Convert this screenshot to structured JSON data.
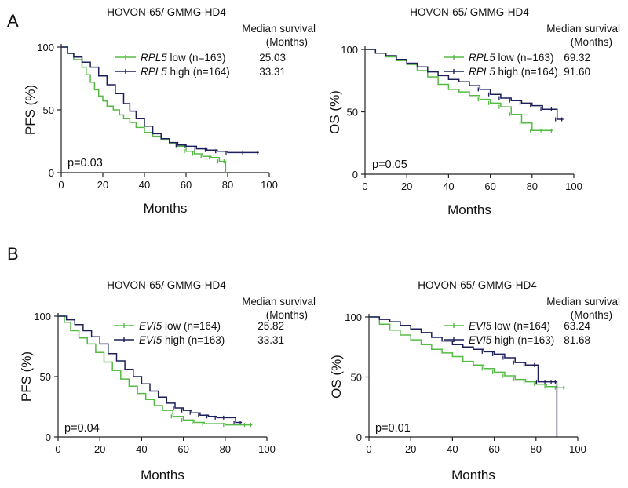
{
  "panels": [
    {
      "letter": "A"
    },
    {
      "letter": "B"
    }
  ],
  "colors": {
    "low": "#55bb44",
    "high": "#1c1f5a",
    "axis": "#222222"
  },
  "chart_data": [
    {
      "type": "line",
      "panel": "A",
      "title": "HOVON-65/ GMMG-HD4",
      "xlabel": "Months",
      "ylabel": "PFS (%)",
      "xlim": [
        0,
        100
      ],
      "ylim": [
        0,
        100
      ],
      "xticks": [
        "0",
        "20",
        "40",
        "60",
        "80",
        "100"
      ],
      "yticks": [
        "0",
        "50",
        "100"
      ],
      "legend_header": [
        "Median survival",
        "(Months)"
      ],
      "p_value": "p=0.03",
      "series": [
        {
          "name": "low",
          "gene": "RPL5",
          "n": "(n=163)",
          "median": "25.03",
          "points": [
            [
              0,
              100
            ],
            [
              3,
              95
            ],
            [
              6,
              90
            ],
            [
              10,
              84
            ],
            [
              12,
              78
            ],
            [
              14,
              72
            ],
            [
              16,
              66
            ],
            [
              18,
              61
            ],
            [
              20,
              57
            ],
            [
              22,
              53
            ],
            [
              25,
              50
            ],
            [
              28,
              46
            ],
            [
              30,
              43
            ],
            [
              33,
              40
            ],
            [
              36,
              36
            ],
            [
              40,
              32
            ],
            [
              44,
              29
            ],
            [
              48,
              26
            ],
            [
              52,
              23
            ],
            [
              56,
              21
            ],
            [
              60,
              17
            ],
            [
              64,
              15
            ],
            [
              68,
              13
            ],
            [
              72,
              12
            ],
            [
              76,
              9
            ],
            [
              79,
              9
            ],
            [
              79,
              0
            ]
          ]
        },
        {
          "name": "high",
          "gene": "RPL5",
          "n": "(n=164)",
          "median": "33.31",
          "points": [
            [
              0,
              100
            ],
            [
              3,
              95
            ],
            [
              6,
              92
            ],
            [
              10,
              88
            ],
            [
              14,
              84
            ],
            [
              18,
              77
            ],
            [
              22,
              70
            ],
            [
              26,
              63
            ],
            [
              30,
              55
            ],
            [
              33,
              49
            ],
            [
              36,
              43
            ],
            [
              40,
              37
            ],
            [
              44,
              31
            ],
            [
              48,
              27
            ],
            [
              52,
              24
            ],
            [
              56,
              22
            ],
            [
              60,
              21
            ],
            [
              65,
              19
            ],
            [
              70,
              18
            ],
            [
              75,
              17
            ],
            [
              80,
              16
            ],
            [
              88,
              16
            ],
            [
              95,
              16
            ]
          ]
        }
      ]
    },
    {
      "type": "line",
      "panel": "A",
      "title": "HOVON-65/ GMMG-HD4",
      "xlabel": "Months",
      "ylabel": "OS (%)",
      "xlim": [
        0,
        100
      ],
      "ylim": [
        0,
        100
      ],
      "xticks": [
        "0",
        "20",
        "40",
        "60",
        "80",
        "100"
      ],
      "yticks": [
        "0",
        "50",
        "100"
      ],
      "legend_header": [
        "Median survival",
        "(Months)"
      ],
      "p_value": "p=0.05",
      "series": [
        {
          "name": "low",
          "gene": "RPL5",
          "n": "(n=163)",
          "median": "69.32",
          "points": [
            [
              0,
              100
            ],
            [
              5,
              97
            ],
            [
              10,
              94
            ],
            [
              15,
              91
            ],
            [
              20,
              88
            ],
            [
              25,
              83
            ],
            [
              30,
              78
            ],
            [
              35,
              72
            ],
            [
              40,
              68
            ],
            [
              45,
              66
            ],
            [
              50,
              63
            ],
            [
              55,
              60
            ],
            [
              60,
              57
            ],
            [
              65,
              54
            ],
            [
              70,
              48
            ],
            [
              75,
              41
            ],
            [
              80,
              35
            ],
            [
              85,
              35
            ],
            [
              90,
              35
            ]
          ]
        },
        {
          "name": "high",
          "gene": "RPL5",
          "n": "(n=164)",
          "median": "91.60",
          "points": [
            [
              0,
              100
            ],
            [
              5,
              97
            ],
            [
              10,
              95
            ],
            [
              15,
              92
            ],
            [
              20,
              89
            ],
            [
              25,
              86
            ],
            [
              30,
              82
            ],
            [
              35,
              79
            ],
            [
              40,
              76
            ],
            [
              45,
              74
            ],
            [
              50,
              71
            ],
            [
              55,
              68
            ],
            [
              60,
              64
            ],
            [
              65,
              61
            ],
            [
              70,
              59
            ],
            [
              75,
              57
            ],
            [
              80,
              55
            ],
            [
              85,
              52
            ],
            [
              90,
              52
            ],
            [
              92,
              44
            ],
            [
              95,
              44
            ]
          ]
        }
      ]
    },
    {
      "type": "line",
      "panel": "B",
      "title": "HOVON-65/ GMMG-HD4",
      "xlabel": "Months",
      "ylabel": "PFS (%)",
      "xlim": [
        0,
        100
      ],
      "ylim": [
        0,
        100
      ],
      "xticks": [
        "0",
        "20",
        "40",
        "60",
        "80",
        "100"
      ],
      "yticks": [
        "0",
        "50",
        "100"
      ],
      "legend_header": [
        "Median survival",
        "(Months)"
      ],
      "p_value": "p=0.04",
      "series": [
        {
          "name": "low",
          "gene": "EVI5",
          "n": "(n=164)",
          "median": "25.82",
          "points": [
            [
              0,
              100
            ],
            [
              3,
              95
            ],
            [
              6,
              88
            ],
            [
              10,
              82
            ],
            [
              14,
              77
            ],
            [
              18,
              70
            ],
            [
              22,
              62
            ],
            [
              26,
              55
            ],
            [
              30,
              48
            ],
            [
              34,
              42
            ],
            [
              38,
              36
            ],
            [
              42,
              31
            ],
            [
              46,
              26
            ],
            [
              50,
              22
            ],
            [
              55,
              17
            ],
            [
              60,
              14
            ],
            [
              65,
              12
            ],
            [
              70,
              11
            ],
            [
              80,
              10
            ],
            [
              90,
              10
            ],
            [
              93,
              10
            ]
          ]
        },
        {
          "name": "high",
          "gene": "EVI5",
          "n": "(n=163)",
          "median": "33.31",
          "points": [
            [
              0,
              100
            ],
            [
              4,
              97
            ],
            [
              8,
              93
            ],
            [
              12,
              88
            ],
            [
              16,
              83
            ],
            [
              20,
              77
            ],
            [
              24,
              69
            ],
            [
              28,
              63
            ],
            [
              32,
              56
            ],
            [
              36,
              50
            ],
            [
              40,
              44
            ],
            [
              44,
              38
            ],
            [
              48,
              33
            ],
            [
              52,
              28
            ],
            [
              56,
              24
            ],
            [
              60,
              22
            ],
            [
              64,
              20
            ],
            [
              68,
              18
            ],
            [
              72,
              17
            ],
            [
              76,
              16
            ],
            [
              80,
              16
            ],
            [
              85,
              12
            ],
            [
              88,
              12
            ]
          ]
        }
      ]
    },
    {
      "type": "line",
      "panel": "B",
      "title": "HOVON-65/ GMMG-HD4",
      "xlabel": "Months",
      "ylabel": "OS (%)",
      "xlim": [
        0,
        100
      ],
      "ylim": [
        0,
        100
      ],
      "xticks": [
        "0",
        "20",
        "40",
        "60",
        "80",
        "100"
      ],
      "yticks": [
        "0",
        "50",
        "100"
      ],
      "legend_header": [
        "Median survival",
        "(Months)"
      ],
      "p_value": "p=0.01",
      "series": [
        {
          "name": "low",
          "gene": "EVI5",
          "n": "(n=164)",
          "median": "63.24",
          "points": [
            [
              0,
              100
            ],
            [
              5,
              94
            ],
            [
              10,
              89
            ],
            [
              15,
              85
            ],
            [
              20,
              81
            ],
            [
              25,
              77
            ],
            [
              30,
              73
            ],
            [
              35,
              70
            ],
            [
              40,
              67
            ],
            [
              45,
              63
            ],
            [
              50,
              60
            ],
            [
              55,
              57
            ],
            [
              60,
              54
            ],
            [
              65,
              51
            ],
            [
              70,
              48
            ],
            [
              75,
              46
            ],
            [
              80,
              44
            ],
            [
              85,
              42
            ],
            [
              90,
              41
            ],
            [
              94,
              41
            ]
          ]
        },
        {
          "name": "high",
          "gene": "EVI5",
          "n": "(n=163)",
          "median": "81.68",
          "points": [
            [
              0,
              100
            ],
            [
              5,
              98
            ],
            [
              10,
              96
            ],
            [
              15,
              93
            ],
            [
              20,
              90
            ],
            [
              25,
              87
            ],
            [
              30,
              83
            ],
            [
              35,
              80
            ],
            [
              40,
              77
            ],
            [
              45,
              75
            ],
            [
              50,
              73
            ],
            [
              55,
              71
            ],
            [
              60,
              69
            ],
            [
              65,
              66
            ],
            [
              70,
              62
            ],
            [
              75,
              60
            ],
            [
              80,
              60
            ],
            [
              81,
              46
            ],
            [
              85,
              46
            ],
            [
              88,
              46
            ],
            [
              90,
              46
            ],
            [
              90,
              0
            ]
          ]
        }
      ]
    }
  ]
}
